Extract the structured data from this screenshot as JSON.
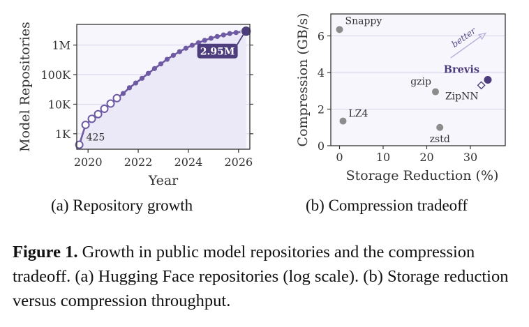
{
  "chart_data": [
    {
      "type": "line",
      "subcaption": "(a) Repository growth",
      "xlabel": "Year",
      "ylabel": "Model Repositories",
      "yscale": "log",
      "xlim": [
        2019.55,
        2026.45
      ],
      "ylim": [
        300,
        5000000
      ],
      "xticks": [
        2020,
        2022,
        2024,
        2026
      ],
      "xtick_labels": [
        "2020",
        "2022",
        "2024",
        "2026"
      ],
      "yticks": [
        1000,
        10000,
        100000,
        1000000
      ],
      "ytick_labels": [
        "1K",
        "10K",
        "100K",
        "1M"
      ],
      "grid": "horizontal",
      "series": [
        {
          "x": [
            2019.65,
            2019.9,
            2020.15,
            2020.4,
            2020.65,
            2020.9,
            2021.15,
            2021.4,
            2021.65,
            2021.9,
            2022.15,
            2022.4,
            2022.65,
            2022.9,
            2023.15,
            2023.4,
            2023.65,
            2023.9,
            2024.15,
            2024.4,
            2024.65,
            2024.9,
            2025.15,
            2025.4,
            2025.65,
            2025.9,
            2026.15,
            2026.3
          ],
          "y": [
            425,
            2000,
            3200,
            4600,
            7000,
            10500,
            16000,
            23000,
            36000,
            52000,
            75000,
            110000,
            160000,
            230000,
            330000,
            450000,
            600000,
            780000,
            980000,
            1200000,
            1450000,
            1700000,
            1950000,
            2200000,
            2450000,
            2650000,
            2850000,
            2950000
          ],
          "hollow_points": 7
        }
      ],
      "annotations": [
        {
          "text": "425",
          "x": 2019.65,
          "y": 425
        },
        {
          "text": "2.95M",
          "x": 2026.3,
          "y": 2950000
        }
      ]
    },
    {
      "type": "scatter",
      "subcaption": "(b) Compression tradeoff",
      "xlabel": "Storage Reduction (%)",
      "ylabel": "Compression (GB/s)",
      "xlim": [
        -2,
        38
      ],
      "ylim": [
        0,
        7.2
      ],
      "xticks": [
        0,
        10,
        20,
        30
      ],
      "xtick_labels": [
        "0",
        "10",
        "20",
        "30"
      ],
      "yticks": [
        0,
        2,
        4,
        6
      ],
      "ytick_labels": [
        "0",
        "2",
        "4",
        "6"
      ],
      "grid": "horizontal",
      "points": [
        {
          "label": "Snappy",
          "x": 0,
          "y": 6.35,
          "style": "gray"
        },
        {
          "label": "LZ4",
          "x": 0.8,
          "y": 1.35,
          "style": "gray"
        },
        {
          "label": "gzip",
          "x": 22,
          "y": 2.95,
          "style": "gray"
        },
        {
          "label": "zstd",
          "x": 23,
          "y": 1.0,
          "style": "gray"
        },
        {
          "label": "ZipNN",
          "x": 32.5,
          "y": 3.3,
          "style": "diamond"
        },
        {
          "label": "Brevis",
          "x": 34,
          "y": 3.6,
          "style": "highlight"
        }
      ],
      "arrow_label": "better",
      "arrow": {
        "x1": 25.5,
        "y1": 4.8,
        "x2": 33.5,
        "y2": 6.15
      }
    }
  ],
  "caption": {
    "lead": "Figure 1.",
    "text": " Growth in public model repositories and the compression tradeoff. (a) Hugging Face repositories (log scale). (b) Storage reduction versus compression throughput."
  },
  "colors": {
    "accent": "#4d3d7d",
    "line": "#6d5aa3",
    "fill": "#ebe8f8",
    "plot_bg": "#f7f6fd",
    "gray_point": "#8c8c8c",
    "axis": "#333333"
  }
}
